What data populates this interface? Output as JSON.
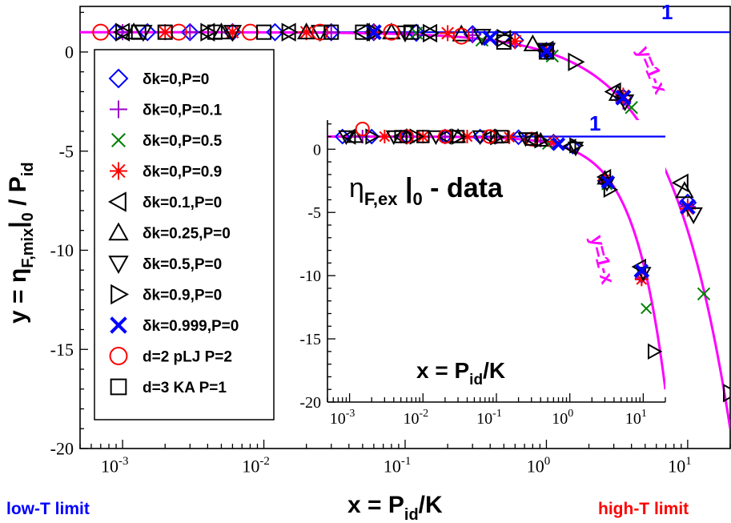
{
  "chart_data": [
    {
      "type": "scatter",
      "id": "main",
      "xscale": "log",
      "xlim": [
        0.0005,
        20
      ],
      "ylim": [
        -20,
        2.3
      ],
      "xlabel_main": "x = P",
      "xlabel_sub": "id",
      "xlabel_tail": "/K",
      "ylabel": "y = ηF,mix|0 / Pid",
      "ylabel_pre": "y = η",
      "ylabel_sub1": "F,mix",
      "ylabel_bar": "|",
      "ylabel_sub2": "0",
      "ylabel_mid": " / P",
      "ylabel_sub3": "id",
      "yticks": [
        0,
        -5,
        -10,
        -15,
        -20
      ],
      "ytick_labels": [
        "0",
        "-5",
        "-10",
        "-15",
        "-20"
      ],
      "xticks": [
        0.001,
        0.01,
        0.1,
        1,
        10
      ],
      "xtick_base": "10",
      "xtick_exps": [
        "-3",
        "-2",
        "-1",
        "0",
        "1"
      ],
      "reference_line": {
        "label": "1",
        "y": 1
      },
      "curve": {
        "label": "y=1-x"
      },
      "low_limit_label": "low-T limit",
      "high_limit_label": "high-T limit",
      "series": [
        {
          "name": "δk=0,P=0",
          "marker": "diamond",
          "color": "#0000ff",
          "x": [
            0.0009,
            0.0015,
            0.003,
            0.006,
            0.012,
            0.03,
            0.06,
            0.12,
            0.3,
            0.6,
            1.0,
            3.5,
            10
          ],
          "y": [
            1,
            1,
            1,
            1,
            1,
            1,
            1,
            0.97,
            0.9,
            0.6,
            0.05,
            -2.3,
            -7.6
          ]
        },
        {
          "name": "δk=0,P=0.1",
          "marker": "plus",
          "color": "#9900cc",
          "x": [
            0.001,
            0.003,
            0.006,
            0.03,
            0.1,
            0.3,
            1.0,
            3.5,
            10
          ],
          "y": [
            1,
            1,
            1,
            1,
            0.97,
            0.85,
            0.05,
            -2.5,
            -7.8
          ]
        },
        {
          "name": "δk=0,P=0.5",
          "marker": "x",
          "color": "#008000",
          "x": [
            0.12,
            0.35,
            1.1,
            4,
            13
          ],
          "y": [
            0.95,
            0.6,
            -0.2,
            -2.8,
            -12.2
          ]
        },
        {
          "name": "δk=0,P=0.9",
          "marker": "star",
          "color": "#ff0000",
          "x": [
            0.002,
            0.006,
            0.02,
            0.06,
            0.2,
            0.6,
            1.0,
            3.5,
            10
          ],
          "y": [
            1,
            1,
            1,
            1,
            0.95,
            0.55,
            0.05,
            -2.2,
            -7.9
          ]
        },
        {
          "name": "δk=0.1,P=0",
          "marker": "tri-left",
          "color": "#000000",
          "x": [
            0.001,
            0.004,
            0.015,
            0.05,
            0.15,
            0.5,
            1.0,
            3,
            9
          ],
          "y": [
            1,
            1,
            1,
            1,
            0.95,
            0.65,
            0.1,
            -2.0,
            -6.6
          ]
        },
        {
          "name": "δk=0.25,P=0",
          "marker": "tri-up",
          "color": "#000000",
          "x": [
            0.0012,
            0.005,
            0.02,
            0.08,
            0.25,
            0.8,
            3.2,
            9.5
          ],
          "y": [
            1,
            1,
            1,
            1,
            0.9,
            0.4,
            -2.1,
            -7.0
          ]
        },
        {
          "name": "δk=0.5,P=0",
          "marker": "tri-down",
          "color": "#000000",
          "x": [
            0.0014,
            0.006,
            0.025,
            0.1,
            0.35,
            1.0,
            3.6,
            11
          ],
          "y": [
            1,
            1,
            1,
            0.97,
            0.8,
            0.1,
            -2.5,
            -8.2
          ]
        },
        {
          "name": "δk=0.9,P=0",
          "marker": "tri-right",
          "color": "#000000",
          "x": [
            0.001,
            0.004,
            0.015,
            0.06,
            0.15,
            0.5,
            1.6,
            5,
            20
          ],
          "y": [
            1,
            1,
            1,
            1,
            0.95,
            0.7,
            -0.5,
            -4.0,
            -17.2
          ]
        },
        {
          "name": "δk=0.999,P=0",
          "marker": "bigx",
          "color": "#0000ff",
          "x": [
            0.06,
            0.4,
            1.0,
            3.5,
            10
          ],
          "y": [
            1,
            0.7,
            0.05,
            -2.3,
            -7.8
          ]
        },
        {
          "name": "d=2 pLJ P=2",
          "marker": "circle",
          "color": "#ff0000",
          "x": [
            0.0007,
            0.0025,
            0.008,
            0.025,
            0.08,
            0.25
          ],
          "y": [
            1,
            1,
            1,
            1,
            1,
            0.8
          ]
        },
        {
          "name": "d=3 KA P=1",
          "marker": "square",
          "color": "#000000",
          "x": [
            0.0013,
            0.002,
            0.0045,
            0.01,
            0.03,
            0.05,
            0.11,
            0.5,
            1.0
          ],
          "y": [
            1,
            1,
            1,
            1,
            1,
            1,
            1,
            0.5,
            0.0
          ]
        }
      ]
    },
    {
      "type": "scatter",
      "id": "inset",
      "title_pre": "η",
      "title_sub": "F,ex",
      "title_bar": " |",
      "title_sub2": "0",
      "title_post": " - data",
      "xscale": "log",
      "xlim": [
        0.0005,
        20
      ],
      "ylim": [
        -20,
        2.3
      ],
      "xlabel_main": "x = P",
      "xlabel_sub": "id",
      "xlabel_tail": "/K",
      "yticks": [
        0,
        -5,
        -10,
        -15,
        -20
      ],
      "ytick_labels": [
        "0",
        "-5",
        "-10",
        "-15",
        "-20"
      ],
      "xticks": [
        0.001,
        0.01,
        0.1,
        1,
        10
      ],
      "xtick_base": "10",
      "xtick_exps": [
        "-3",
        "-2",
        "-1",
        "0",
        "1"
      ],
      "reference_line": {
        "label": "1",
        "y": 1
      },
      "curve": {
        "label": "y=1-x"
      },
      "series": [
        {
          "name": "δk=0,P=0",
          "marker": "diamond",
          "color": "#0000ff",
          "x": [
            0.0008,
            0.002,
            0.006,
            0.02,
            0.06,
            0.2,
            0.6,
            1.1,
            3,
            9.5
          ],
          "y": [
            1,
            1,
            1,
            1,
            1,
            0.95,
            0.6,
            0.2,
            -2.5,
            -10.0
          ]
        },
        {
          "name": "δk=0,P=0.1",
          "marker": "plus",
          "color": "#9900cc",
          "x": [
            0.0015,
            0.005,
            0.02,
            0.1,
            0.4,
            3,
            9.5
          ],
          "y": [
            1,
            1,
            1,
            0.95,
            0.7,
            -2.6,
            -10.2
          ]
        },
        {
          "name": "δk=0,P=0.5",
          "marker": "x",
          "color": "#008000",
          "x": [
            0.5,
            3.2,
            11
          ],
          "y": [
            0.4,
            -2.8,
            -12.6
          ]
        },
        {
          "name": "δk=0,P=0.9",
          "marker": "star",
          "color": "#ff0000",
          "x": [
            0.003,
            0.01,
            0.04,
            0.15,
            0.6,
            3,
            9.5
          ],
          "y": [
            1,
            1,
            1,
            0.95,
            0.6,
            -2.4,
            -10.3
          ]
        },
        {
          "name": "δk=0.1,P=0",
          "marker": "tri-left",
          "color": "#000000",
          "x": [
            0.001,
            0.005,
            0.02,
            0.08,
            0.3,
            1.0,
            3,
            9
          ],
          "y": [
            1,
            1,
            1,
            1,
            0.8,
            0.2,
            -2.2,
            -9.3
          ]
        },
        {
          "name": "δk=0.25,P=0",
          "marker": "tri-up",
          "color": "#000000",
          "x": [
            0.0012,
            0.006,
            0.03,
            0.1,
            0.4,
            3
          ],
          "y": [
            1,
            1,
            1,
            0.95,
            0.7,
            -2.3
          ]
        },
        {
          "name": "δk=0.5,P=0",
          "marker": "tri-down",
          "color": "#000000",
          "x": [
            0.0009,
            0.004,
            0.015,
            0.06,
            0.25,
            1.2,
            3.2,
            10
          ],
          "y": [
            1,
            1,
            1,
            1,
            0.85,
            0.1,
            -2.7,
            -9.8
          ]
        },
        {
          "name": "δk=0.9,P=0",
          "marker": "tri-right",
          "color": "#000000",
          "x": [
            0.002,
            0.008,
            0.03,
            0.1,
            0.4,
            1.2,
            3.5,
            14
          ],
          "y": [
            1,
            1,
            1,
            0.95,
            0.7,
            0.3,
            -3.2,
            -16.0
          ]
        },
        {
          "name": "δk=0.999,P=0",
          "marker": "bigx",
          "color": "#0000ff",
          "x": [
            0.7,
            3.3,
            9.5
          ],
          "y": [
            0.4,
            -2.6,
            -9.6
          ]
        },
        {
          "name": "d=2 pLJ P=2",
          "marker": "circle",
          "color": "#ff0000",
          "x": [
            0.0015,
            0.006,
            0.02,
            0.08,
            0.3
          ],
          "y": [
            1.6,
            1,
            1,
            1,
            0.8
          ]
        },
        {
          "name": "d=3 KA P=1",
          "marker": "square",
          "color": "#000000",
          "x": [
            0.005,
            0.01,
            0.03,
            0.12,
            0.3
          ],
          "y": [
            1,
            1,
            1,
            1,
            0.8
          ]
        }
      ]
    }
  ]
}
